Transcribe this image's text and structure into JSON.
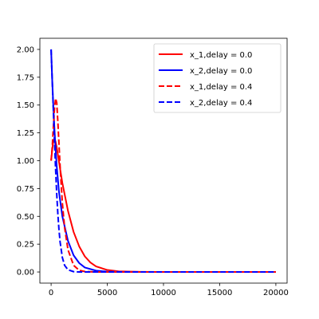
{
  "chart_data": {
    "type": "line",
    "title": "",
    "xlabel": "",
    "ylabel": "",
    "xlim": [
      -1000,
      21000
    ],
    "ylim": [
      -0.1,
      2.1
    ],
    "xticks": [
      0,
      5000,
      10000,
      15000,
      20000
    ],
    "yticks": [
      0.0,
      0.25,
      0.5,
      0.75,
      1.0,
      1.25,
      1.5,
      1.75,
      2.0
    ],
    "xtick_labels": [
      "0",
      "5000",
      "10000",
      "15000",
      "20000"
    ],
    "ytick_labels": [
      "0.00",
      "0.25",
      "0.50",
      "0.75",
      "1.00",
      "1.25",
      "1.50",
      "1.75",
      "2.00"
    ],
    "grid": false,
    "legend_position": "top-right",
    "series": [
      {
        "name": "x_1,delay = 0.0",
        "color": "#ff0000",
        "style": "solid",
        "x": [
          0,
          100,
          200,
          300,
          400,
          500,
          700,
          1000,
          1500,
          2000,
          2500,
          3000,
          3500,
          4000,
          5000,
          6000,
          8000,
          10000,
          15000,
          20000
        ],
        "y": [
          1.0,
          1.1,
          1.18,
          1.2,
          1.17,
          1.12,
          0.99,
          0.8,
          0.55,
          0.36,
          0.23,
          0.14,
          0.085,
          0.05,
          0.018,
          0.006,
          0.001,
          0.0,
          0.0,
          0.0
        ]
      },
      {
        "name": "x_2,delay = 0.0",
        "color": "#0000ff",
        "style": "solid",
        "x": [
          0,
          100,
          200,
          300,
          400,
          500,
          700,
          1000,
          1500,
          2000,
          2500,
          3000,
          4000,
          5000,
          6000,
          8000,
          10000,
          15000,
          20000
        ],
        "y": [
          2.0,
          1.72,
          1.48,
          1.28,
          1.1,
          0.95,
          0.72,
          0.5,
          0.28,
          0.15,
          0.08,
          0.04,
          0.012,
          0.003,
          0.001,
          0.0,
          0.0,
          0.0,
          0.0
        ]
      },
      {
        "name": "x_1,delay = 0.4",
        "color": "#ff0000",
        "style": "dashed",
        "x": [
          0,
          100,
          200,
          300,
          400,
          500,
          600,
          700,
          800,
          1000,
          1200,
          1500,
          2000,
          2500,
          3000,
          4000,
          5000,
          8000,
          10000,
          15000,
          20000
        ],
        "y": [
          1.0,
          1.12,
          1.3,
          1.47,
          1.56,
          1.52,
          1.35,
          1.15,
          0.95,
          0.62,
          0.4,
          0.2,
          0.06,
          0.015,
          0.004,
          0.0,
          0.0,
          0.0,
          0.0,
          0.0,
          0.0
        ]
      },
      {
        "name": "x_2,delay = 0.4",
        "color": "#0000ff",
        "style": "dashed",
        "x": [
          0,
          100,
          200,
          300,
          400,
          500,
          600,
          700,
          800,
          1000,
          1200,
          1500,
          2000,
          2500,
          3000,
          5000,
          10000,
          15000,
          20000
        ],
        "y": [
          2.0,
          1.72,
          1.45,
          1.18,
          0.92,
          0.7,
          0.52,
          0.38,
          0.27,
          0.13,
          0.06,
          0.02,
          0.003,
          0.0,
          0.0,
          0.0,
          0.0,
          0.0,
          0.0
        ]
      }
    ]
  }
}
